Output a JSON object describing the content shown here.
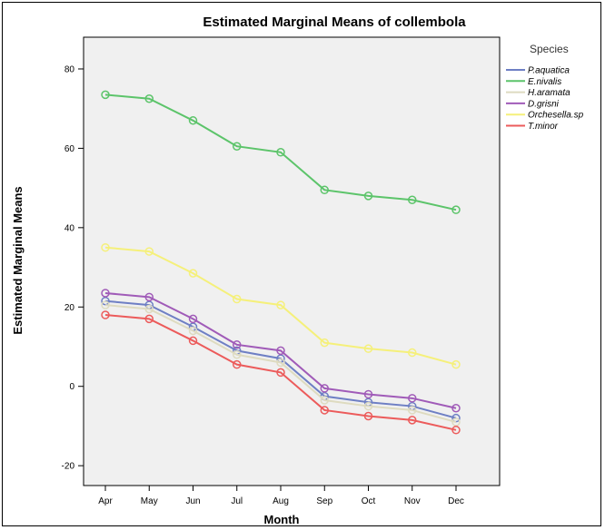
{
  "chart_data": {
    "type": "line",
    "title": "Estimated Marginal Means of collembola",
    "xlabel": "Month",
    "ylabel": "Estimated Marginal Means",
    "categories": [
      "Apr",
      "May",
      "Jun",
      "Jul",
      "Aug",
      "Sep",
      "Oct",
      "Nov",
      "Dec"
    ],
    "ylim": [
      -25,
      88
    ],
    "yticks": [
      -20,
      0,
      20,
      40,
      60,
      80
    ],
    "grid": false,
    "legend": {
      "title": "Species",
      "placement": "right"
    },
    "plot_background": "#f0f0f0",
    "series": [
      {
        "name": "P.aquatica",
        "color": "#6e7fc4",
        "values": [
          21.5,
          20.5,
          15,
          9,
          7,
          -2.5,
          -4,
          -5,
          -8
        ]
      },
      {
        "name": "E.nivalis",
        "color": "#5cc46a",
        "values": [
          73.5,
          72.5,
          67,
          60.5,
          59,
          49.5,
          48,
          47,
          44.5
        ]
      },
      {
        "name": "H.aramata",
        "color": "#dedbc0",
        "values": [
          20.5,
          19.5,
          14,
          8,
          6,
          -3.5,
          -5,
          -6,
          -9
        ]
      },
      {
        "name": "D.grisni",
        "color": "#a05bb8",
        "values": [
          23.5,
          22.5,
          17,
          10.5,
          9,
          -0.5,
          -2,
          -3,
          -5.5
        ]
      },
      {
        "name": "Orchesella.sp",
        "color": "#f5f07a",
        "values": [
          35,
          34,
          28.5,
          22,
          20.5,
          11,
          9.5,
          8.5,
          5.5
        ]
      },
      {
        "name": "T.minor",
        "color": "#ec5b5b",
        "values": [
          18,
          17,
          11.5,
          5.5,
          3.5,
          -6,
          -7.5,
          -8.5,
          -11
        ]
      }
    ]
  }
}
